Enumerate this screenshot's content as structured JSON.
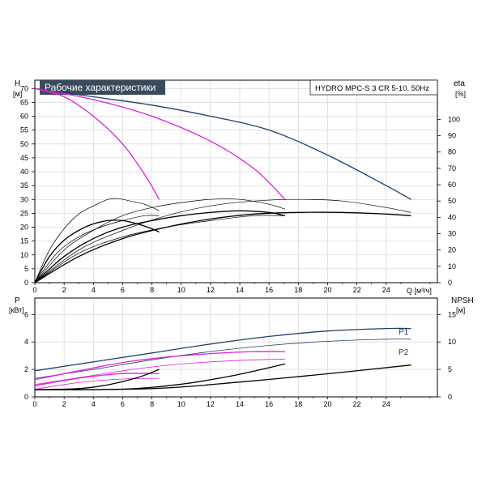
{
  "header": {
    "title": "Рабочие характеристики",
    "product": "HYDRO MPC-S 3 CR 5-10, 50Hz",
    "title_bg": "#3a4a5c",
    "title_fg": "#ffffff"
  },
  "colors": {
    "navy": "#1f3f6b",
    "magenta": "#e020d8",
    "black": "#000000",
    "grid": "#cfcfcf",
    "axis": "#000000"
  },
  "chart_data": [
    {
      "type": "line",
      "ylabel": "H",
      "yunit": "[м]",
      "y2label": "eta",
      "y2unit": "[%]",
      "xlabel": "Q [м³/ч]",
      "xlim": [
        0,
        27.5
      ],
      "ylim": [
        0,
        73
      ],
      "y2lim": [
        0,
        124
      ],
      "x_ticks": [
        0,
        2,
        4,
        6,
        8,
        10,
        12,
        14,
        16,
        18,
        20,
        22,
        24
      ],
      "y_ticks": [
        0,
        5,
        10,
        15,
        20,
        25,
        30,
        35,
        40,
        45,
        50,
        55,
        60,
        65,
        70
      ],
      "y2_ticks": [
        0,
        10,
        20,
        30,
        40,
        50,
        60,
        70,
        80,
        90,
        100
      ],
      "grid": true,
      "series": [
        {
          "kind": "head",
          "color": "navy",
          "width": 1.3,
          "points": [
            [
              0,
              70
            ],
            [
              4,
              67
            ],
            [
              8,
              64
            ],
            [
              12,
              60
            ],
            [
              16,
              55
            ],
            [
              20,
              46
            ],
            [
              24,
              35
            ],
            [
              25.7,
              30
            ]
          ]
        },
        {
          "kind": "head",
          "color": "magenta",
          "width": 1.3,
          "points": [
            [
              0,
              70
            ],
            [
              4,
              66
            ],
            [
              8,
              60
            ],
            [
              12,
              51
            ],
            [
              15,
              41
            ],
            [
              17.1,
              30
            ]
          ]
        },
        {
          "kind": "head",
          "color": "magenta",
          "width": 1.3,
          "points": [
            [
              0,
              70
            ],
            [
              2,
              67
            ],
            [
              4,
              60
            ],
            [
              6,
              50
            ],
            [
              7.5,
              39
            ],
            [
              8.5,
              30
            ]
          ]
        },
        {
          "kind": "eta",
          "color": "black",
          "width": 1.3,
          "points": [
            [
              0,
              0
            ],
            [
              1,
              16
            ],
            [
              2,
              26
            ],
            [
              3,
              32
            ],
            [
              4,
              36
            ],
            [
              5,
              38
            ],
            [
              6,
              38
            ],
            [
              7,
              36
            ],
            [
              8,
              33
            ],
            [
              8.5,
              31
            ]
          ]
        },
        {
          "kind": "eta",
          "color": "black",
          "width": 1.3,
          "points": [
            [
              0,
              0
            ],
            [
              2,
              16
            ],
            [
              4,
              27
            ],
            [
              6,
              34
            ],
            [
              8,
              38
            ],
            [
              10,
              41
            ],
            [
              12,
              43
            ],
            [
              14,
              44
            ],
            [
              16,
              43
            ],
            [
              17.1,
              41
            ]
          ]
        },
        {
          "kind": "eta",
          "color": "black",
          "width": 1.3,
          "points": [
            [
              0,
              0
            ],
            [
              3,
              16
            ],
            [
              6,
              27
            ],
            [
              9,
              34
            ],
            [
              12,
              39
            ],
            [
              15,
              42
            ],
            [
              18,
              43
            ],
            [
              21,
              43
            ],
            [
              24,
              42
            ],
            [
              25.7,
              41
            ]
          ]
        },
        {
          "kind": "eta",
          "color": "black",
          "width": 0.7,
          "points": [
            [
              0,
              0
            ],
            [
              1,
              20
            ],
            [
              2,
              33
            ],
            [
              3,
              42
            ],
            [
              4,
              47
            ],
            [
              5,
              51
            ],
            [
              5.7,
              51.5
            ],
            [
              6.5,
              50
            ],
            [
              7.5,
              48
            ],
            [
              8.5,
              44
            ]
          ]
        },
        {
          "kind": "eta",
          "color": "black",
          "width": 0.7,
          "points": [
            [
              0,
              0
            ],
            [
              2,
              20
            ],
            [
              4,
              32
            ],
            [
              6,
              41
            ],
            [
              8,
              46
            ],
            [
              10,
              49
            ],
            [
              12,
              51
            ],
            [
              14,
              51
            ],
            [
              16,
              48
            ],
            [
              17.1,
              45
            ]
          ]
        },
        {
          "kind": "eta",
          "color": "black",
          "width": 0.7,
          "points": [
            [
              0,
              0
            ],
            [
              3,
              20
            ],
            [
              6,
              32
            ],
            [
              9,
              41
            ],
            [
              12,
              47
            ],
            [
              15,
              50
            ],
            [
              18,
              51
            ],
            [
              21,
              50
            ],
            [
              24,
              46
            ],
            [
              25.7,
              43
            ]
          ]
        },
        {
          "kind": "eta",
          "color": "black",
          "width": 0.7,
          "points": [
            [
              0,
              0
            ],
            [
              1.5,
              18
            ],
            [
              3,
              28
            ],
            [
              4.5,
              34
            ],
            [
              6,
              38
            ],
            [
              7.5,
              41
            ],
            [
              8.5,
              41
            ]
          ]
        },
        {
          "kind": "eta",
          "color": "black",
          "width": 0.7,
          "points": [
            [
              0,
              0
            ],
            [
              3,
              18
            ],
            [
              6,
              28
            ],
            [
              9,
              34
            ],
            [
              12,
              38
            ],
            [
              15,
              41
            ],
            [
              17.1,
              41
            ]
          ]
        }
      ]
    },
    {
      "type": "line",
      "ylabel": "P",
      "yunit": "[кВт]",
      "y2label": "NPSH",
      "y2unit": "[м]",
      "xlim": [
        0,
        27.5
      ],
      "ylim": [
        0,
        7.2
      ],
      "y2lim": [
        0,
        18
      ],
      "y_ticks": [
        0,
        2,
        4,
        6
      ],
      "y2_ticks": [
        0,
        5,
        10,
        15
      ],
      "grid": true,
      "labels": [
        "P1",
        "P2"
      ],
      "series": [
        {
          "kind": "P1",
          "color": "navy",
          "width": 1.3,
          "points": [
            [
              0,
              1.9
            ],
            [
              4,
              2.55
            ],
            [
              8,
              3.2
            ],
            [
              12,
              3.85
            ],
            [
              16,
              4.4
            ],
            [
              20,
              4.8
            ],
            [
              24,
              4.98
            ],
            [
              25.7,
              4.98
            ]
          ]
        },
        {
          "kind": "P2",
          "color": "navy",
          "width": 0.8,
          "points": [
            [
              0,
              1.35
            ],
            [
              4,
              2.0
            ],
            [
              8,
              2.7
            ],
            [
              12,
              3.3
            ],
            [
              16,
              3.75
            ],
            [
              20,
              4.05
            ],
            [
              24,
              4.2
            ],
            [
              25.7,
              4.2
            ]
          ]
        },
        {
          "kind": "P1",
          "color": "magenta",
          "width": 1.3,
          "points": [
            [
              0,
              1.25
            ],
            [
              3,
              1.9
            ],
            [
              6,
              2.5
            ],
            [
              9,
              2.9
            ],
            [
              12,
              3.15
            ],
            [
              15,
              3.3
            ],
            [
              17.1,
              3.3
            ]
          ]
        },
        {
          "kind": "P2",
          "color": "magenta",
          "width": 0.8,
          "points": [
            [
              0,
              0.9
            ],
            [
              3,
              1.4
            ],
            [
              6,
              1.9
            ],
            [
              9,
              2.3
            ],
            [
              12,
              2.55
            ],
            [
              15,
              2.7
            ],
            [
              17.1,
              2.75
            ]
          ]
        },
        {
          "kind": "P1",
          "color": "magenta",
          "width": 1.3,
          "points": [
            [
              0,
              0.8
            ],
            [
              2,
              1.2
            ],
            [
              4,
              1.5
            ],
            [
              6,
              1.7
            ],
            [
              8.5,
              1.7
            ]
          ]
        },
        {
          "kind": "P2",
          "color": "magenta",
          "width": 0.8,
          "points": [
            [
              0,
              0.55
            ],
            [
              2,
              0.9
            ],
            [
              4,
              1.15
            ],
            [
              6,
              1.3
            ],
            [
              8.5,
              1.35
            ]
          ]
        },
        {
          "kind": "npsh",
          "color": "black",
          "width": 1.3,
          "points": [
            [
              0,
              1.3
            ],
            [
              3,
              1.5
            ],
            [
              5,
              2.2
            ],
            [
              7,
              3.5
            ],
            [
              8.5,
              5.0
            ]
          ]
        },
        {
          "kind": "npsh",
          "color": "black",
          "width": 1.3,
          "points": [
            [
              0,
              1.3
            ],
            [
              6,
              1.4
            ],
            [
              10,
              2.3
            ],
            [
              13,
              3.6
            ],
            [
              15,
              4.7
            ],
            [
              17.1,
              6.0
            ]
          ]
        },
        {
          "kind": "npsh",
          "color": "black",
          "width": 1.3,
          "points": [
            [
              0,
              1.3
            ],
            [
              8,
              1.5
            ],
            [
              14,
              2.7
            ],
            [
              20,
              4.2
            ],
            [
              25.7,
              5.8
            ]
          ]
        }
      ]
    }
  ]
}
